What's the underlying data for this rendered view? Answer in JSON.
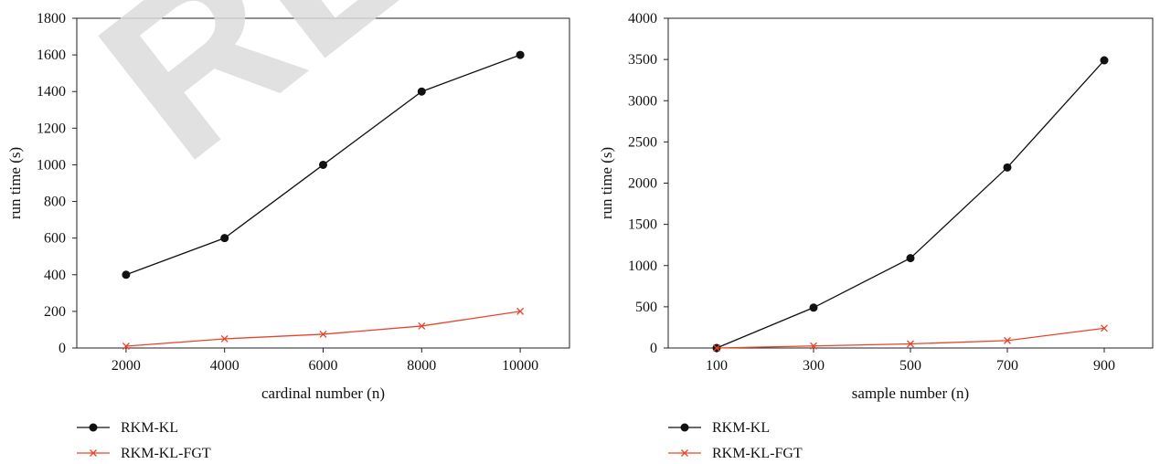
{
  "watermark": "RE",
  "chart_data": [
    {
      "type": "line",
      "x": [
        2000,
        4000,
        6000,
        8000,
        10000
      ],
      "xlabel": "cardinal number (n)",
      "ylabel": "run time (s)",
      "xticks": [
        "2000",
        "4000",
        "6000",
        "8000",
        "10000"
      ],
      "yticks": [
        "0",
        "200",
        "400",
        "600",
        "800",
        "1000",
        "1200",
        "1400",
        "1600",
        "1800"
      ],
      "xlim": [
        1000,
        11000
      ],
      "ylim": [
        0,
        1800
      ],
      "legend_position": "bottom-left",
      "series": [
        {
          "name": "RKM-KL",
          "values": [
            400,
            600,
            1000,
            1400,
            1600
          ],
          "color": "#111111",
          "marker": "dot"
        },
        {
          "name": "RKM-KL-FGT",
          "values": [
            10,
            50,
            75,
            120,
            200
          ],
          "color": "#e8442c",
          "marker": "x"
        }
      ]
    },
    {
      "type": "line",
      "x": [
        100,
        300,
        500,
        700,
        900
      ],
      "xlabel": "sample number (n)",
      "ylabel": "run time (s)",
      "xticks": [
        "100",
        "300",
        "500",
        "700",
        "900"
      ],
      "yticks": [
        "0",
        "500",
        "1000",
        "1500",
        "2000",
        "2500",
        "3000",
        "3500",
        "4000"
      ],
      "xlim": [
        0,
        1000
      ],
      "ylim": [
        0,
        4000
      ],
      "legend_position": "bottom-left",
      "series": [
        {
          "name": "RKM-KL",
          "values": [
            0,
            490,
            1090,
            2190,
            3490
          ],
          "color": "#111111",
          "marker": "dot"
        },
        {
          "name": "RKM-KL-FGT",
          "values": [
            0,
            25,
            50,
            90,
            240
          ],
          "color": "#e8442c",
          "marker": "x"
        }
      ]
    }
  ]
}
